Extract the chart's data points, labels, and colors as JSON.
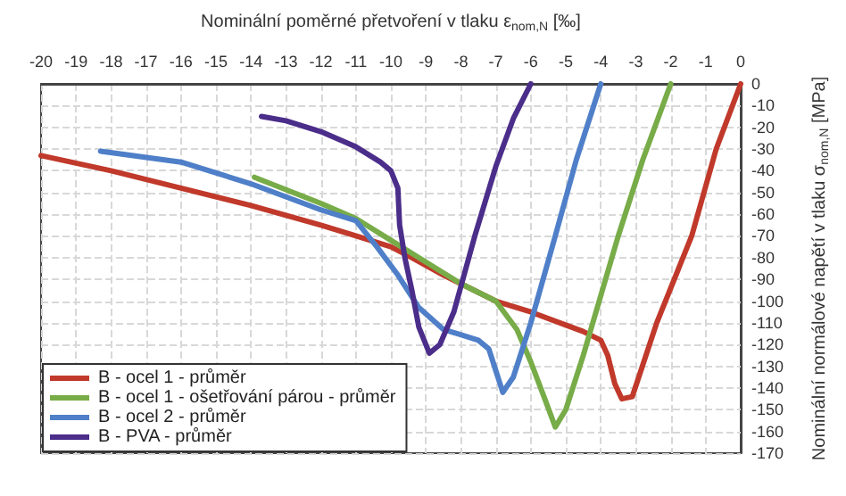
{
  "chart_data": {
    "type": "line",
    "xlabel": "Nominální poměrné přetvoření v tlaku ε$_{nom,N}$ [‰]",
    "ylabel": "Nominální normálové napětí v tlaku σ$_{nom,N}$ [MPa]",
    "xlim": [
      -20,
      0
    ],
    "xticks": [
      -20,
      -19,
      -18,
      -17,
      -16,
      -15,
      -14,
      -13,
      -12,
      -11,
      -10,
      -9,
      -8,
      -7,
      -6,
      -5,
      -4,
      -3,
      -2,
      -1,
      0
    ],
    "ylim": [
      -170,
      0
    ],
    "yticks": [
      -170,
      -160,
      -150,
      -140,
      -130,
      -120,
      -110,
      -100,
      -90,
      -80,
      -70,
      -60,
      -50,
      -40,
      -30,
      -20,
      -10,
      0
    ],
    "grid": true,
    "legend": "bottom left",
    "marker": "none",
    "line_style": "solid",
    "series": [
      {
        "name": "B - ocel 1 - průměr",
        "color": "#c0392b",
        "x": [
          -20,
          -18,
          -16,
          -14,
          -12,
          -11,
          -10,
          -9.4,
          -8.5,
          -7.5,
          -7,
          -6,
          -5,
          -4.5,
          -4,
          -3.8,
          -3.6,
          -3.4,
          -3.1,
          -2.4,
          -1.4,
          -0.7,
          0
        ],
        "values": [
          -33,
          -40,
          -48,
          -56,
          -65,
          -70,
          -75,
          -80,
          -88,
          -96,
          -100,
          -105,
          -111,
          -114,
          -118,
          -125,
          -138,
          -145,
          -144,
          -110,
          -70,
          -30,
          0
        ]
      },
      {
        "name": "B - ocel 1 - ošetřování párou - průměr",
        "color": "#77ac48",
        "x": [
          -13.9,
          -12,
          -11,
          -10,
          -9,
          -8,
          -7,
          -6.4,
          -6,
          -5.6,
          -5.3,
          -5,
          -4.5,
          -3.5,
          -2.8,
          -2
        ],
        "values": [
          -43,
          -55,
          -62,
          -72,
          -82,
          -92,
          -100,
          -113,
          -128,
          -145,
          -158,
          -150,
          -125,
          -70,
          -35,
          0
        ]
      },
      {
        "name": "B - ocel 2 - průměr",
        "color": "#4f7fc8",
        "x": [
          -18.3,
          -16,
          -14,
          -12,
          -11,
          -10.4,
          -9.8,
          -9.2,
          -8.5,
          -7.5,
          -7.2,
          -7,
          -6.8,
          -6.5,
          -6,
          -5.3,
          -4.7,
          -4
        ],
        "values": [
          -31,
          -36,
          -46,
          -58,
          -63,
          -75,
          -88,
          -103,
          -113,
          -118,
          -122,
          -132,
          -142,
          -135,
          -110,
          -70,
          -35,
          0
        ]
      },
      {
        "name": "B - PVA - průměr",
        "color": "#4b2d8a",
        "x": [
          -13.7,
          -13,
          -12,
          -11,
          -10.3,
          -10,
          -9.8,
          -9.75,
          -9.6,
          -9.4,
          -9.2,
          -8.9,
          -8.6,
          -8.2,
          -7.6,
          -7,
          -6.5,
          -6
        ],
        "values": [
          -15,
          -17,
          -22,
          -29,
          -36,
          -40,
          -48,
          -65,
          -80,
          -95,
          -112,
          -124,
          -120,
          -105,
          -70,
          -38,
          -16,
          0
        ]
      }
    ]
  }
}
